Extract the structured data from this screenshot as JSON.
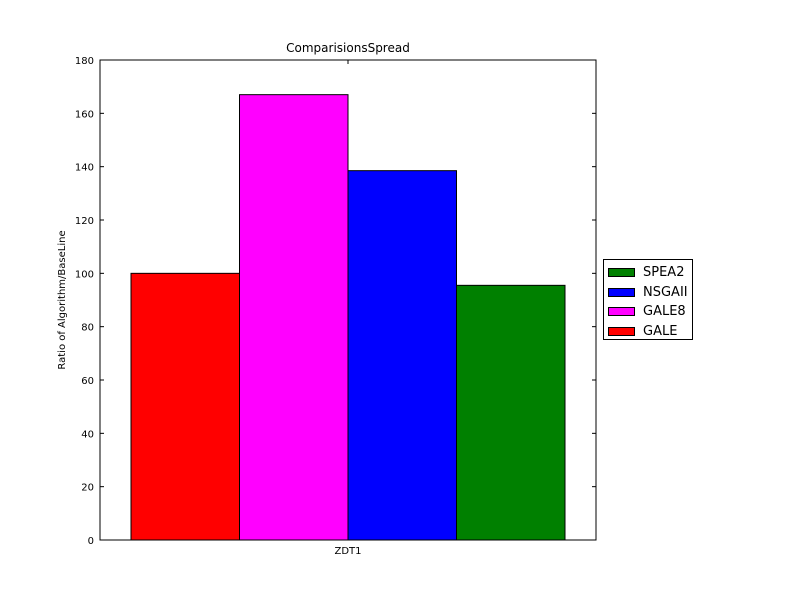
{
  "chart_data": {
    "type": "bar",
    "title": "ComparisionsSpread",
    "xlabel": "",
    "ylabel": "Ratio of Algorithm/BaseLine",
    "categories": [
      "ZDT1"
    ],
    "ylim": [
      0,
      180
    ],
    "yticks": [
      "0",
      "20",
      "40",
      "60",
      "80",
      "100",
      "120",
      "140",
      "160",
      "180"
    ],
    "grid": false,
    "legend_position": "right",
    "series": [
      {
        "name": "GALE",
        "color": "#ff0000",
        "values": [
          100
        ]
      },
      {
        "name": "GALE8",
        "color": "#ff00ff",
        "values": [
          167
        ]
      },
      {
        "name": "NSGAII",
        "color": "#0000ff",
        "values": [
          138.5
        ]
      },
      {
        "name": "SPEA2",
        "color": "#008000",
        "values": [
          95.5
        ]
      }
    ],
    "legend_order": [
      "SPEA2",
      "NSGAII",
      "GALE8",
      "GALE"
    ]
  }
}
